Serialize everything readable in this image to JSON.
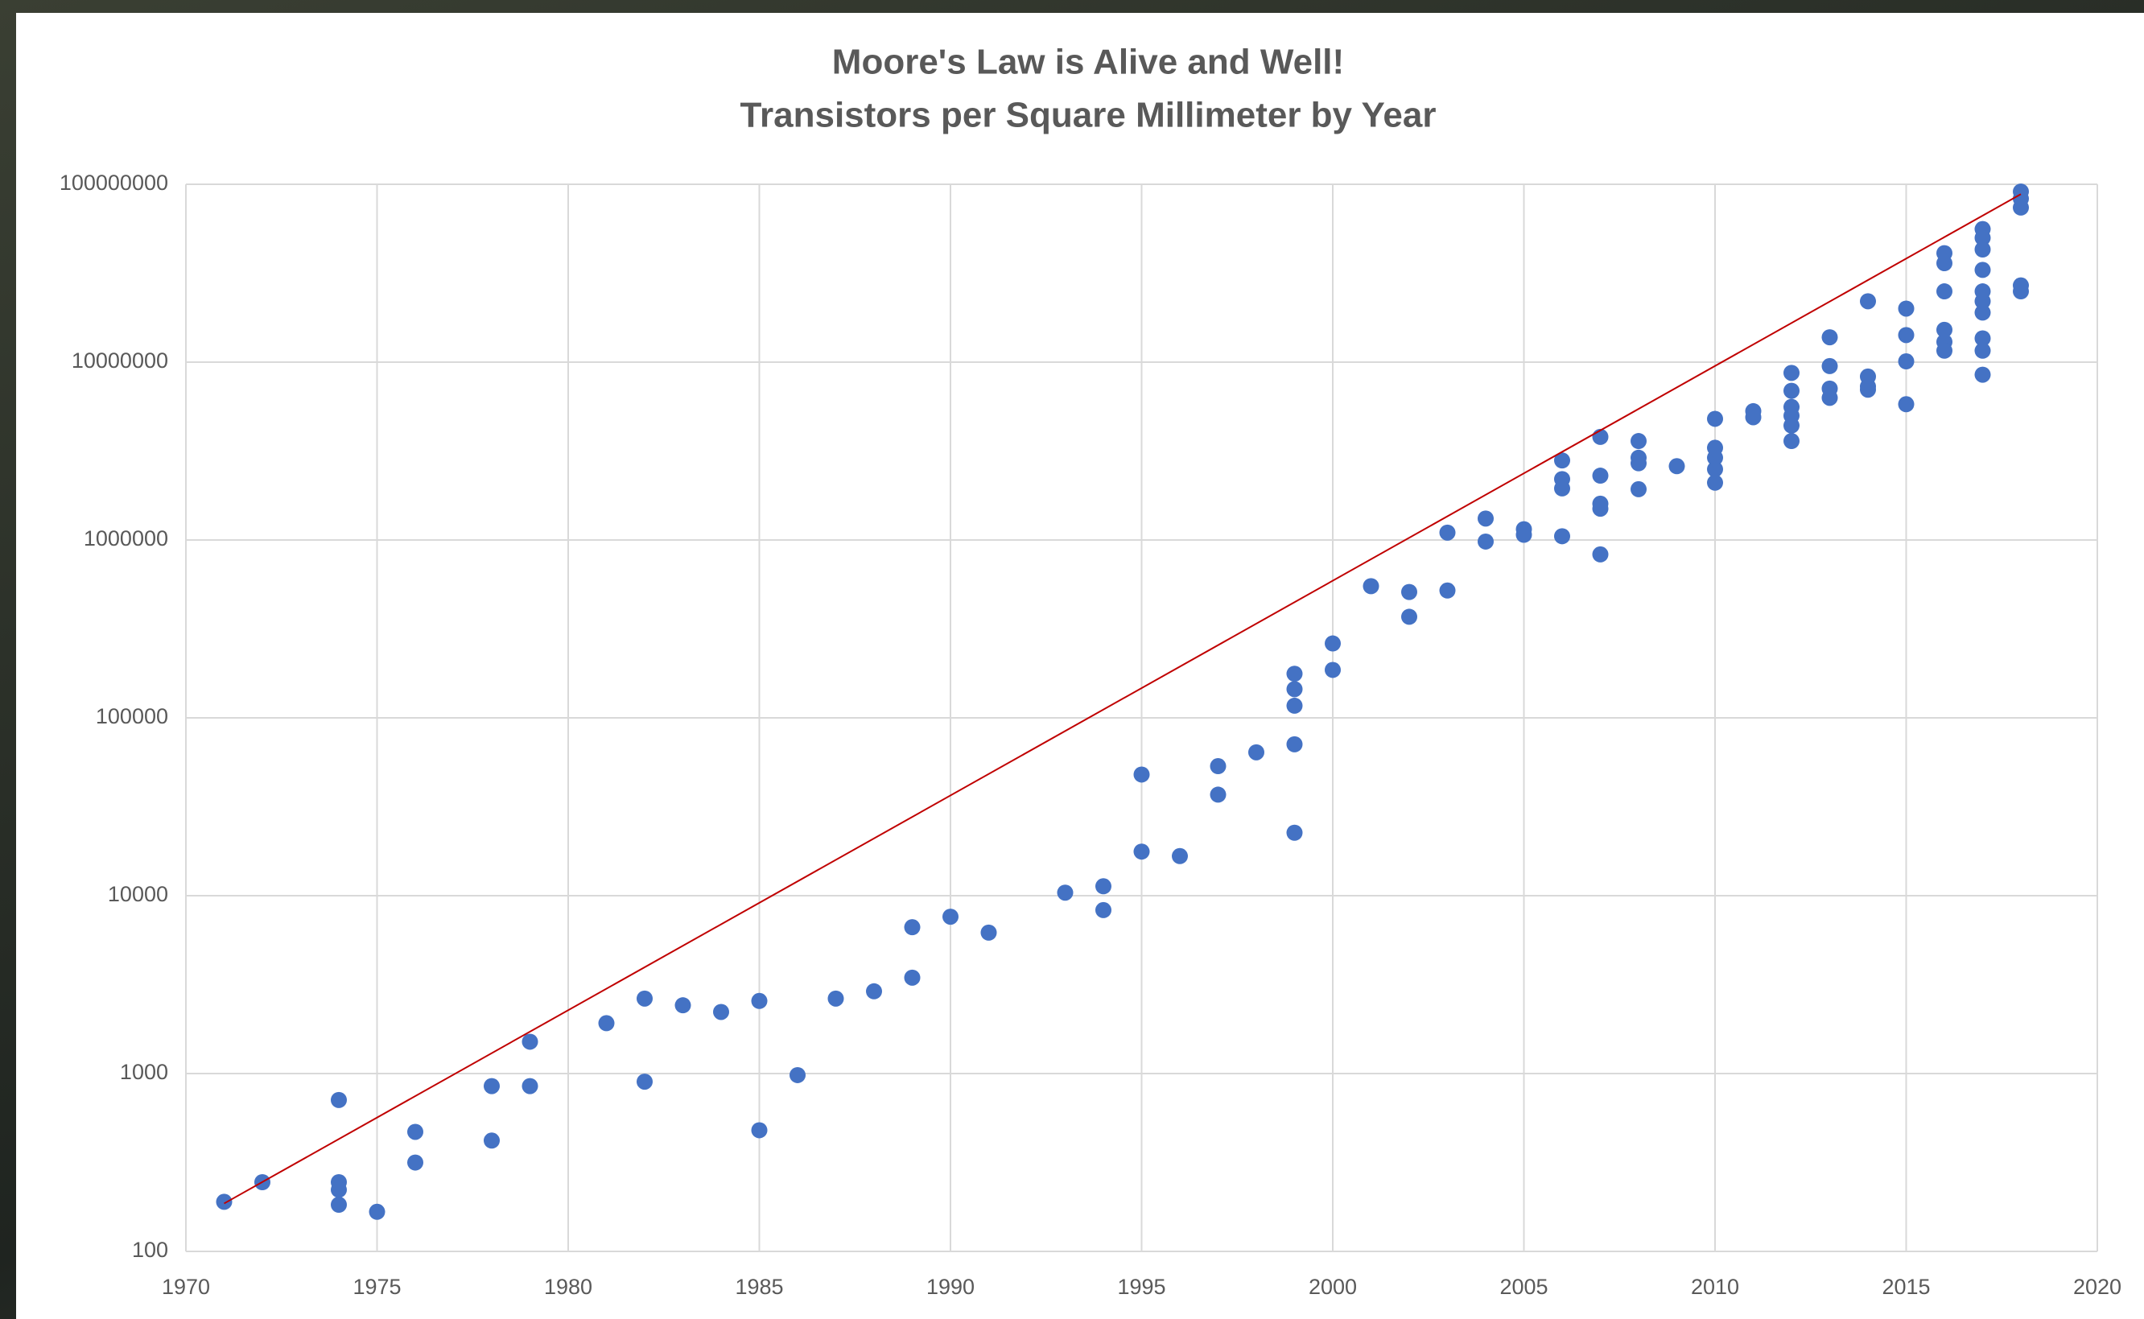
{
  "chart_data": {
    "type": "scatter",
    "title": "Moore's Law is Alive and Well!",
    "subtitle": "Transistors per Square Millimeter by Year",
    "ylog": true,
    "grid": true,
    "xlim": [
      1970,
      2020
    ],
    "xticks": [
      1970,
      1975,
      1980,
      1985,
      1990,
      1995,
      2000,
      2005,
      2010,
      2015,
      2020
    ],
    "ylim": [
      100,
      100000000
    ],
    "yticks": [
      100,
      1000,
      10000,
      100000,
      1000000,
      10000000,
      100000000
    ],
    "series": [
      {
        "color": "#4472c4",
        "x": [
          1971,
          1972,
          1974,
          1974,
          1974,
          1974,
          1975,
          1976,
          1976,
          1978,
          1978,
          1979,
          1979,
          1981,
          1982,
          1982,
          1983,
          1984,
          1985,
          1985,
          1986,
          1987,
          1988,
          1989,
          1989,
          1990,
          1991,
          1993,
          1994,
          1994,
          1995,
          1995,
          1996,
          1997,
          1997,
          1998,
          1999,
          1999,
          1999,
          1999,
          1999,
          2000,
          2000,
          2001,
          2002,
          2002,
          2003,
          2003,
          2004,
          2004,
          2005,
          2005,
          2006,
          2006,
          2006,
          2006,
          2007,
          2007,
          2007,
          2007,
          2007,
          2008,
          2008,
          2008,
          2008,
          2009,
          2010,
          2010,
          2010,
          2010,
          2010,
          2011,
          2011,
          2012,
          2012,
          2012,
          2012,
          2012,
          2012,
          2013,
          2013,
          2013,
          2013,
          2014,
          2014,
          2014,
          2014,
          2015,
          2015,
          2015,
          2015,
          2016,
          2016,
          2016,
          2016,
          2016,
          2016,
          2017,
          2017,
          2017,
          2017,
          2017,
          2017,
          2017,
          2017,
          2017,
          2017,
          2018,
          2018,
          2018,
          2018,
          2018
        ],
        "values": [
          190,
          245,
          710,
          245,
          222,
          183,
          167,
          470,
          316,
          850,
          420,
          1510,
          850,
          1920,
          2640,
          900,
          2420,
          2220,
          2560,
          480,
          980,
          2640,
          2900,
          6650,
          3460,
          7620,
          6200,
          10400,
          11300,
          8300,
          48000,
          17700,
          16700,
          53500,
          37000,
          64000,
          177000,
          145000,
          117000,
          71000,
          22600,
          262000,
          186000,
          550000,
          510000,
          370000,
          1100000,
          520000,
          1320000,
          980000,
          1150000,
          1070000,
          2800000,
          2200000,
          1950000,
          1050000,
          3800000,
          2300000,
          1600000,
          1500000,
          830000,
          3600000,
          2900000,
          2700000,
          1930000,
          2600000,
          4800000,
          3300000,
          2900000,
          2500000,
          2100000,
          5300000,
          4900000,
          8700000,
          6900000,
          5600000,
          5000000,
          4400000,
          3600000,
          13800000,
          9500000,
          7100000,
          6300000,
          22000000,
          8300000,
          7300000,
          7000000,
          20000000,
          14200000,
          10100000,
          5800000,
          41000000,
          36000000,
          25000000,
          15200000,
          13000000,
          11600000,
          56000000,
          50000000,
          43000000,
          33000000,
          25000000,
          22000000,
          19000000,
          13600000,
          11600000,
          8500000,
          91000000,
          83000000,
          74000000,
          27000000,
          25000000
        ]
      }
    ],
    "trendline": {
      "color": "#c00000",
      "x": [
        1971,
        2018
      ],
      "values": [
        186,
        88000000
      ]
    }
  }
}
